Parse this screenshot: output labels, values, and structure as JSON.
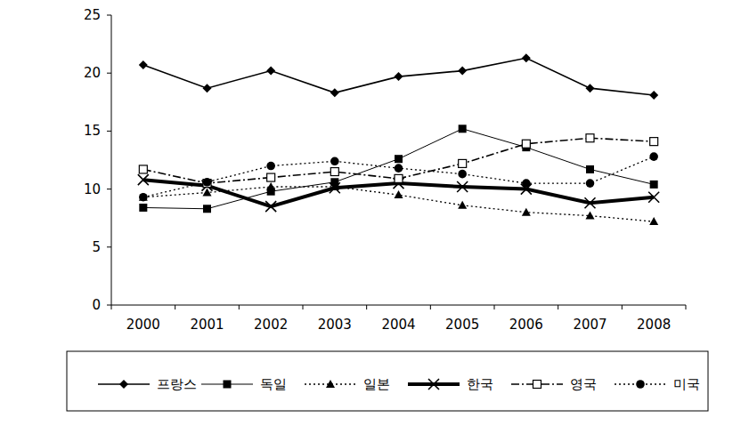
{
  "chart_data": {
    "type": "line",
    "categories": [
      "2000",
      "2001",
      "2002",
      "2003",
      "2004",
      "2005",
      "2006",
      "2007",
      "2008"
    ],
    "series": [
      {
        "name": "프랑스",
        "color": "#000000",
        "marker": "diamond",
        "line_style": "solid",
        "values": [
          20.7,
          18.7,
          20.2,
          18.3,
          19.7,
          20.2,
          21.3,
          18.7,
          18.1
        ]
      },
      {
        "name": "독일",
        "color": "#000000",
        "marker": "square",
        "line_style": "thin",
        "values": [
          8.4,
          8.3,
          9.8,
          10.6,
          12.6,
          15.2,
          13.6,
          11.7,
          10.4
        ]
      },
      {
        "name": "일본",
        "color": "#000000",
        "marker": "triangle",
        "line_style": "dotted",
        "values": [
          9.3,
          9.7,
          10.2,
          10.2,
          9.5,
          8.6,
          8.0,
          7.7,
          7.2
        ]
      },
      {
        "name": "한국",
        "color": "#000000",
        "marker": "x",
        "line_style": "thick",
        "values": [
          10.8,
          10.3,
          8.5,
          10.1,
          10.5,
          10.2,
          10.0,
          8.8,
          9.3
        ]
      },
      {
        "name": "영국",
        "color": "#000000",
        "marker": "square-open",
        "line_style": "dashdot",
        "values": [
          11.7,
          10.5,
          11.0,
          11.5,
          10.9,
          12.2,
          13.9,
          14.4,
          14.1
        ]
      },
      {
        "name": "미국",
        "color": "#000000",
        "marker": "circle",
        "line_style": "dotted",
        "values": [
          9.3,
          10.6,
          12.0,
          12.4,
          11.8,
          11.3,
          10.5,
          10.5,
          12.8
        ]
      }
    ],
    "ylim": [
      0,
      25
    ],
    "yticks": [
      0,
      5,
      10,
      15,
      20,
      25
    ],
    "grid": false,
    "legend": "bottom"
  }
}
